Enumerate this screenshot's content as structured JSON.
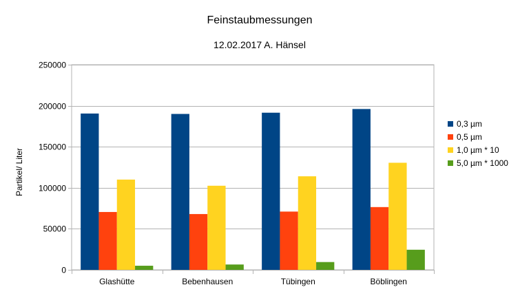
{
  "chart_data": {
    "type": "bar",
    "title": "Feinstaubmessungen",
    "subtitle": "12.02.2017 A. Hänsel",
    "xlabel": "",
    "ylabel": "Partikel/ Liter",
    "ylim": [
      0,
      250000
    ],
    "yticks": [
      "0",
      "50000",
      "100000",
      "150000",
      "200000",
      "250000"
    ],
    "grid": true,
    "legend_position": "right",
    "categories": [
      "Glashütte",
      "Bebenhausen",
      "Tübingen",
      "Böblingen"
    ],
    "series": [
      {
        "name": "0,3 µm",
        "color": "#004586",
        "values": [
          190500,
          190000,
          191500,
          196000
        ]
      },
      {
        "name": "0,5 µm",
        "color": "#ff420e",
        "values": [
          70500,
          68000,
          71000,
          76500
        ]
      },
      {
        "name": "1,0 µm * 10",
        "color": "#ffd320",
        "values": [
          110000,
          102500,
          114000,
          130500
        ]
      },
      {
        "name": "5,0 µm * 1000",
        "color": "#579d1c",
        "values": [
          5000,
          6500,
          9500,
          24500
        ]
      }
    ]
  }
}
